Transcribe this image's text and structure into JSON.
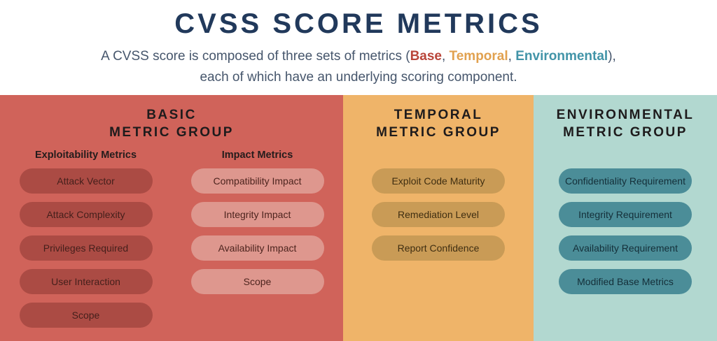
{
  "header": {
    "title": "CVSS SCORE METRICS",
    "subtitle": {
      "prefix": "A CVSS score is composed of three sets of metrics (",
      "base_word": "Base",
      "sep1": ", ",
      "temporal_word": "Temporal",
      "sep2": ", ",
      "environmental_word": "Environmental",
      "suffix": "),",
      "line2": "each of which have an underlying scoring component."
    }
  },
  "colors": {
    "title_navy": "#21395b",
    "subtitle_text": "#46566c",
    "base_word_red": "#b9453a",
    "temporal_word_orange": "#e1a14f",
    "environmental_word_teal": "#4294a8",
    "panel_basic_bg": "#d0635a",
    "panel_temporal_bg": "#efb469",
    "panel_environmental_bg": "#b2d8d0",
    "pill_exploitability_bg": "#ab4b44",
    "pill_impact_bg": "#de978e",
    "pill_temporal_bg": "#c99b56",
    "pill_environmental_bg": "#4b8d98",
    "group_title_text": "#1e1b1c"
  },
  "groups": [
    {
      "id": "basic",
      "title_line1": "BASIC",
      "title_line2": "METRIC GROUP",
      "columns": [
        {
          "header": "Exploitability Metrics",
          "pills": [
            "Attack Vector",
            "Attack Complexity",
            "Privileges Required",
            "User Interaction",
            "Scope"
          ]
        },
        {
          "header": "Impact Metrics",
          "pills": [
            "Compatibility Impact",
            "Integrity Impact",
            "Availability Impact",
            "Scope"
          ]
        }
      ]
    },
    {
      "id": "temporal",
      "title_line1": "TEMPORAL",
      "title_line2": "METRIC GROUP",
      "pills": [
        "Exploit Code Maturity",
        "Remediation Level",
        "Report Confidence"
      ]
    },
    {
      "id": "environmental",
      "title_line1": "ENVIRONMENTAL",
      "title_line2": "METRIC GROUP",
      "pills": [
        "Confidentiality Requirement",
        "Integrity Requirement",
        "Availability Requirement",
        "Modified Base Metrics"
      ]
    }
  ]
}
